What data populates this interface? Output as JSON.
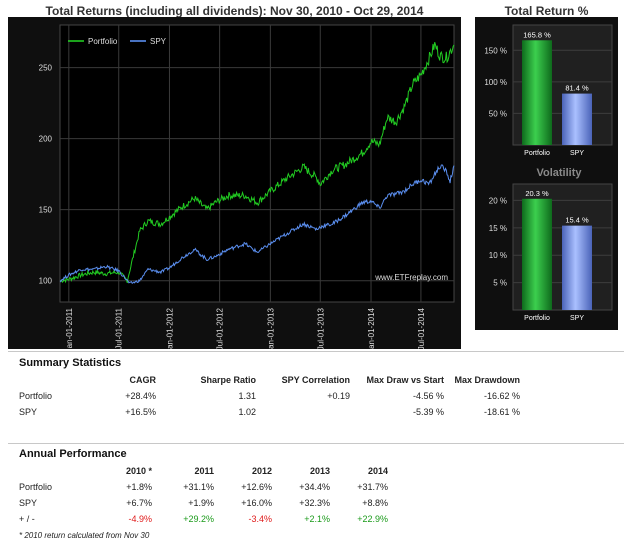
{
  "main_chart": {
    "title": "Total Returns (including all dividends): Nov 30, 2010 - Oct 29, 2014",
    "legend": [
      {
        "name": "Portfolio",
        "color": "#22cc22"
      },
      {
        "name": "SPY",
        "color": "#5b8ff0"
      }
    ],
    "watermark": "www.ETFreplay.com"
  },
  "return_chart": {
    "title": "Total Return %"
  },
  "vol_chart": {
    "title": "Volatility"
  },
  "chart_data": [
    {
      "type": "line",
      "title": "Total Returns (including all dividends): Nov 30, 2010 - Oct 29, 2014",
      "ylim": [
        85,
        280
      ],
      "yticks": [
        100,
        150,
        200,
        250
      ],
      "x_tick_labels": [
        "Jan-01-2011",
        "Jul-01-2011",
        "Jan-01-2012",
        "Jul-01-2012",
        "Jan-01-2013",
        "Jul-01-2013",
        "Jan-01-2014",
        "Jul-01-2014"
      ],
      "x_tick_dates": [
        "2011-01-01",
        "2011-07-01",
        "2012-01-01",
        "2012-07-01",
        "2013-01-01",
        "2013-07-01",
        "2014-01-01",
        "2014-07-01"
      ],
      "xlim": [
        "2010-11-30",
        "2014-10-29"
      ],
      "grid": true,
      "legend_position": "top-left",
      "series": [
        {
          "name": "Portfolio",
          "color": "#22cc22",
          "points": [
            [
              "2010-11-30",
              100
            ],
            [
              "2011-01-01",
              101
            ],
            [
              "2011-02-15",
              104
            ],
            [
              "2011-04-01",
              106
            ],
            [
              "2011-05-15",
              105
            ],
            [
              "2011-07-01",
              106
            ],
            [
              "2011-08-01",
              100
            ],
            [
              "2011-08-20",
              115
            ],
            [
              "2011-09-15",
              135
            ],
            [
              "2011-10-15",
              142
            ],
            [
              "2011-12-01",
              140
            ],
            [
              "2012-01-01",
              145
            ],
            [
              "2012-02-15",
              152
            ],
            [
              "2012-04-01",
              158
            ],
            [
              "2012-05-15",
              150
            ],
            [
              "2012-06-15",
              155
            ],
            [
              "2012-08-01",
              160
            ],
            [
              "2012-10-01",
              160
            ],
            [
              "2012-11-15",
              155
            ],
            [
              "2013-01-01",
              163
            ],
            [
              "2013-03-01",
              172
            ],
            [
              "2013-05-01",
              180
            ],
            [
              "2013-06-20",
              172
            ],
            [
              "2013-07-01",
              168
            ],
            [
              "2013-08-15",
              178
            ],
            [
              "2013-10-01",
              182
            ],
            [
              "2013-12-01",
              190
            ],
            [
              "2014-01-01",
              198
            ],
            [
              "2014-02-01",
              196
            ],
            [
              "2014-03-01",
              215
            ],
            [
              "2014-04-01",
              212
            ],
            [
              "2014-05-01",
              222
            ],
            [
              "2014-06-01",
              238
            ],
            [
              "2014-07-01",
              245
            ],
            [
              "2014-08-01",
              257
            ],
            [
              "2014-08-20",
              266
            ],
            [
              "2014-09-10",
              258
            ],
            [
              "2014-10-01",
              257
            ],
            [
              "2014-10-29",
              266
            ]
          ]
        },
        {
          "name": "SPY",
          "color": "#5b8ff0",
          "points": [
            [
              "2010-11-30",
              100
            ],
            [
              "2011-01-01",
              104
            ],
            [
              "2011-02-15",
              108
            ],
            [
              "2011-04-01",
              108
            ],
            [
              "2011-05-15",
              110
            ],
            [
              "2011-07-01",
              107
            ],
            [
              "2011-08-10",
              98
            ],
            [
              "2011-09-15",
              100
            ],
            [
              "2011-10-15",
              108
            ],
            [
              "2011-12-01",
              106
            ],
            [
              "2012-01-01",
              109
            ],
            [
              "2012-02-15",
              116
            ],
            [
              "2012-04-01",
              122
            ],
            [
              "2012-05-15",
              115
            ],
            [
              "2012-06-15",
              117
            ],
            [
              "2012-08-01",
              122
            ],
            [
              "2012-10-01",
              126
            ],
            [
              "2012-11-15",
              120
            ],
            [
              "2013-01-01",
              126
            ],
            [
              "2013-03-01",
              133
            ],
            [
              "2013-05-01",
              140
            ],
            [
              "2013-06-20",
              136
            ],
            [
              "2013-07-01",
              138
            ],
            [
              "2013-08-15",
              140
            ],
            [
              "2013-10-01",
              146
            ],
            [
              "2013-12-01",
              155
            ],
            [
              "2014-01-01",
              156
            ],
            [
              "2014-02-01",
              151
            ],
            [
              "2014-03-01",
              160
            ],
            [
              "2014-04-01",
              161
            ],
            [
              "2014-05-01",
              163
            ],
            [
              "2014-06-01",
              168
            ],
            [
              "2014-07-01",
              171
            ],
            [
              "2014-08-01",
              168
            ],
            [
              "2014-08-20",
              175
            ],
            [
              "2014-09-10",
              181
            ],
            [
              "2014-10-01",
              177
            ],
            [
              "2014-10-15",
              170
            ],
            [
              "2014-10-29",
              181
            ]
          ]
        }
      ]
    },
    {
      "type": "bar",
      "title": "Total Return %",
      "categories": [
        "Portfolio",
        "SPY"
      ],
      "values": [
        165.8,
        81.4
      ],
      "data_labels": [
        "165.8 %",
        "81.4 %"
      ],
      "ylim": [
        0,
        190
      ],
      "yticks": [
        50,
        100,
        150
      ],
      "ytick_labels": [
        "50 %",
        "100 %",
        "150 %"
      ],
      "colors": [
        "#22aa33",
        "#7799ee"
      ]
    },
    {
      "type": "bar",
      "title": "Volatility",
      "categories": [
        "Portfolio",
        "SPY"
      ],
      "values": [
        20.3,
        15.4
      ],
      "data_labels": [
        "20.3 %",
        "15.4 %"
      ],
      "ylim": [
        0,
        23
      ],
      "yticks": [
        5,
        10,
        15,
        20
      ],
      "ytick_labels": [
        "5 %",
        "10 %",
        "15 %",
        "20 %"
      ],
      "colors": [
        "#22aa33",
        "#7799ee"
      ]
    }
  ],
  "summary": {
    "title": "Summary Statistics",
    "headers": [
      "",
      "CAGR",
      "Sharpe Ratio",
      "SPY Correlation",
      "Max Draw vs Start",
      "Max Drawdown"
    ],
    "rows": [
      {
        "name": "Portfolio",
        "cagr": "+28.4%",
        "sharpe": "1.31",
        "corr": "+0.19",
        "mdvs": "-4.56 %",
        "mdd": "-16.62 %"
      },
      {
        "name": "SPY",
        "cagr": "+16.5%",
        "sharpe": "1.02",
        "corr": "",
        "mdvs": "-5.39 %",
        "mdd": "-18.61 %"
      }
    ]
  },
  "annual": {
    "title": "Annual Performance",
    "headers": [
      "",
      "2010 *",
      "2011",
      "2012",
      "2013",
      "2014"
    ],
    "rows": [
      {
        "name": "Portfolio",
        "values": [
          "+1.8%",
          "+31.1%",
          "+12.6%",
          "+34.4%",
          "+31.7%"
        ]
      },
      {
        "name": "SPY",
        "values": [
          "+6.7%",
          "+1.9%",
          "+16.0%",
          "+32.3%",
          "+8.8%"
        ]
      },
      {
        "name": "+ / -",
        "values": [
          "-4.9%",
          "+29.2%",
          "-3.4%",
          "+2.1%",
          "+22.9%"
        ]
      }
    ],
    "footnote": "* 2010 return calculated from Nov 30"
  },
  "colors": {
    "positive": "#1a9a1a",
    "negative": "#e01b1b",
    "panel_bg": "#0f0f0f",
    "plot_bg": "#000000"
  }
}
